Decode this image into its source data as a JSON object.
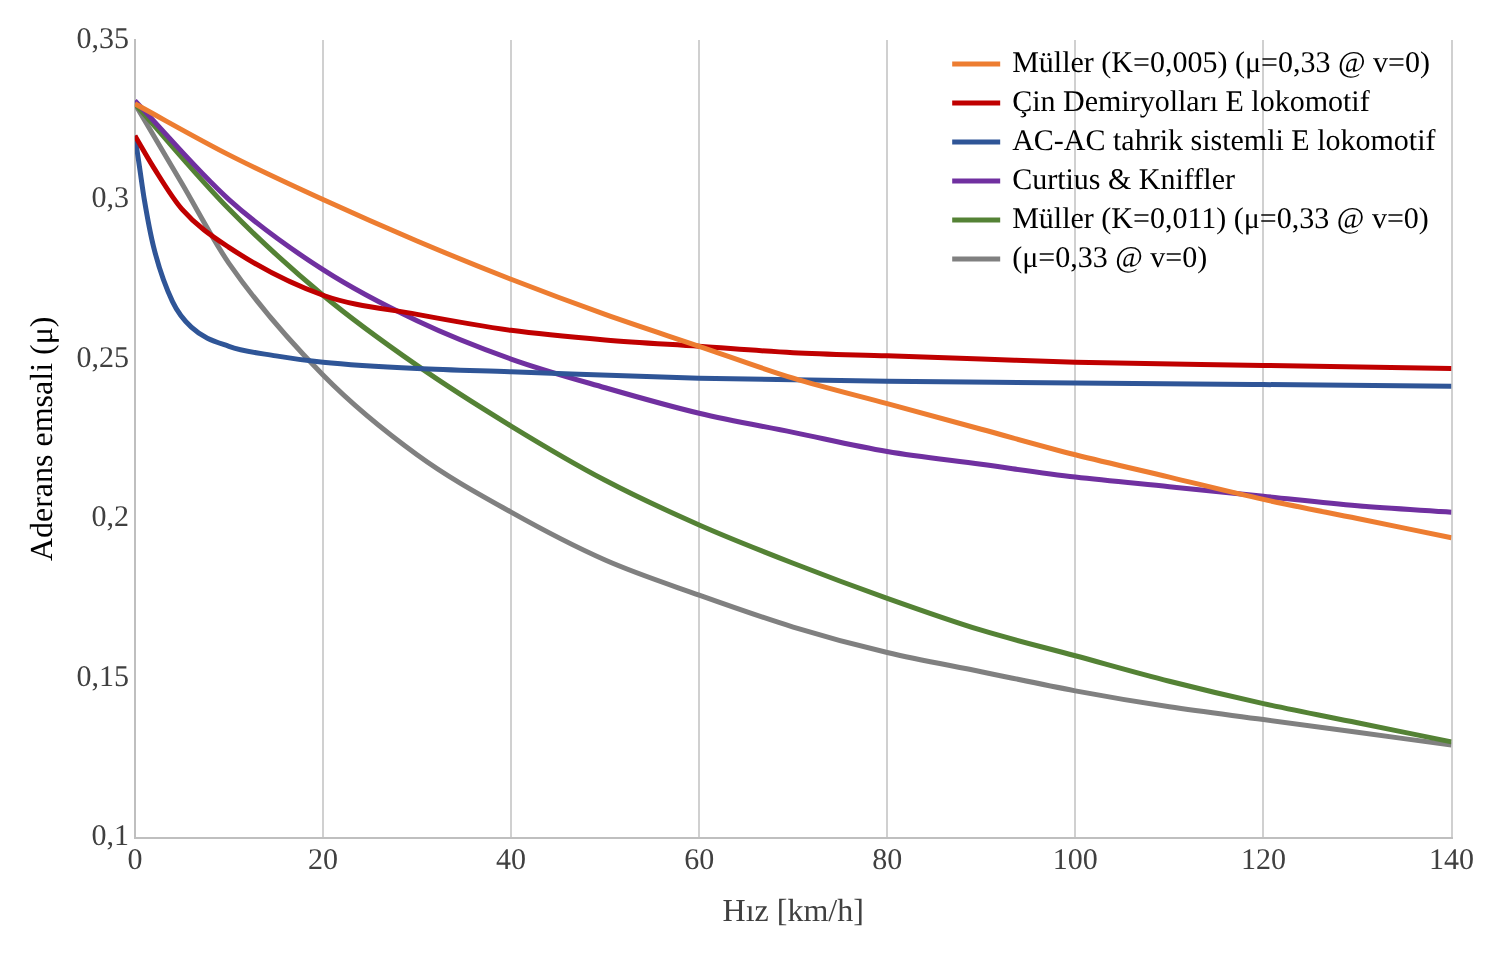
{
  "chart_data": {
    "type": "line",
    "xlabel": "Hız [km/h]",
    "ylabel": "Aderans emsali (μ)",
    "xlim": [
      0,
      140
    ],
    "xticks": [
      0,
      20,
      40,
      60,
      80,
      100,
      120,
      140
    ],
    "ylim": [
      0.1,
      0.35
    ],
    "yticks": [
      {
        "value": 0.1,
        "label": "0,1"
      },
      {
        "value": 0.15,
        "label": "0,15"
      },
      {
        "value": 0.2,
        "label": "0,2"
      },
      {
        "value": 0.25,
        "label": "0,25"
      },
      {
        "value": 0.3,
        "label": "0,3"
      },
      {
        "value": 0.35,
        "label": "0,35"
      }
    ],
    "grid": "x",
    "legend": "top right",
    "marker": "none",
    "line_style": "solid",
    "series": [
      {
        "name": "Müller (K=0,005) (μ=0,33 @ v=0)",
        "color": "#ed7d31",
        "x": [
          0,
          10,
          20,
          30,
          40,
          50,
          60,
          70,
          80,
          90,
          100,
          110,
          120,
          130,
          140
        ],
        "values": [
          0.33,
          0.314,
          0.3,
          0.287,
          0.275,
          0.264,
          0.254,
          0.244,
          0.236,
          0.228,
          0.22,
          0.213,
          0.206,
          0.2,
          0.194
        ]
      },
      {
        "name": "Çin Demiryolları E lokomotif",
        "color": "#c00000",
        "x": [
          0,
          2,
          5,
          10,
          20,
          30,
          40,
          50,
          60,
          70,
          80,
          90,
          100,
          120,
          140
        ],
        "values": [
          0.32,
          0.31,
          0.297,
          0.285,
          0.27,
          0.264,
          0.259,
          0.256,
          0.254,
          0.252,
          0.251,
          0.25,
          0.249,
          0.248,
          0.247
        ]
      },
      {
        "name": "AC-AC tahrik sistemli E lokomotif",
        "color": "#2f5597",
        "x": [
          0,
          0.5,
          1,
          2,
          4,
          6,
          10,
          15,
          20,
          30,
          40,
          60,
          80,
          100,
          120,
          140
        ],
        "values": [
          0.32,
          0.31,
          0.3,
          0.285,
          0.268,
          0.26,
          0.254,
          0.251,
          0.249,
          0.247,
          0.246,
          0.244,
          0.243,
          0.2425,
          0.242,
          0.2415
        ]
      },
      {
        "name": "Curtius & Kniffler",
        "color": "#7030a0",
        "x": [
          0,
          10,
          20,
          30,
          40,
          50,
          60,
          70,
          80,
          90,
          100,
          110,
          120,
          130,
          140
        ],
        "values": [
          0.331,
          0.3,
          0.278,
          0.262,
          0.25,
          0.241,
          0.233,
          0.227,
          0.221,
          0.217,
          0.213,
          0.21,
          0.207,
          0.204,
          0.202
        ]
      },
      {
        "name": "Müller (K=0,011) (μ=0,33 @ v=0)",
        "color": "#548235",
        "x": [
          0,
          10,
          20,
          30,
          40,
          50,
          60,
          70,
          80,
          90,
          100,
          110,
          120,
          130,
          140
        ],
        "values": [
          0.33,
          0.297,
          0.27,
          0.248,
          0.229,
          0.212,
          0.198,
          0.186,
          0.175,
          0.165,
          0.157,
          0.149,
          0.142,
          0.136,
          0.13
        ]
      },
      {
        "name": "(μ=0,33 @ v=0)",
        "color": "#808080",
        "x": [
          0,
          5,
          10,
          20,
          30,
          40,
          50,
          60,
          70,
          80,
          90,
          100,
          110,
          120,
          130,
          140
        ],
        "values": [
          0.33,
          0.305,
          0.28,
          0.245,
          0.22,
          0.202,
          0.187,
          0.176,
          0.166,
          0.158,
          0.152,
          0.146,
          0.141,
          0.137,
          0.133,
          0.129
        ]
      }
    ]
  }
}
